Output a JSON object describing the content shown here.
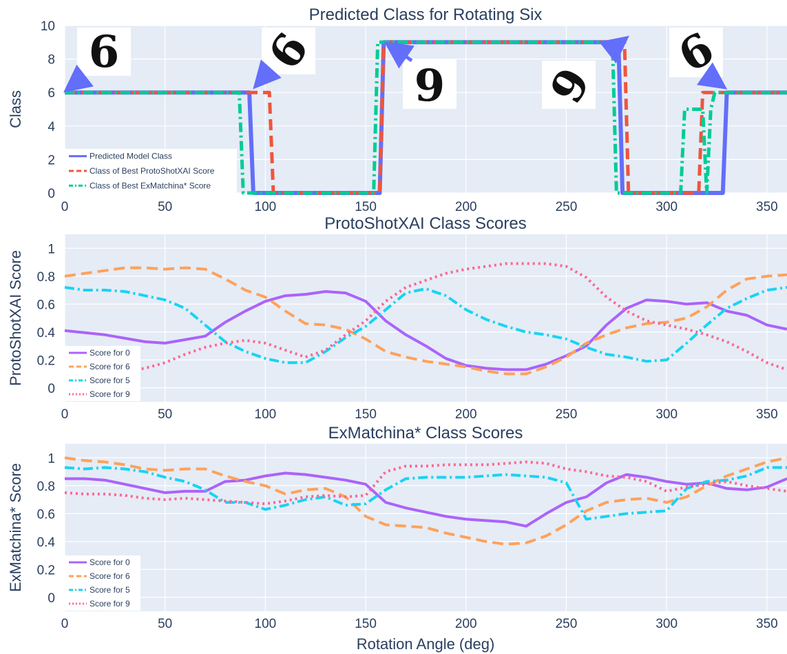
{
  "xlabel": "Rotation Angle (deg)",
  "chart_data": [
    {
      "type": "line",
      "title": "Predicted Class for Rotating Six",
      "ylabel": "Class",
      "xlim": [
        0,
        360
      ],
      "ylim": [
        0,
        10
      ],
      "xticks": [
        0,
        50,
        100,
        150,
        200,
        250,
        300,
        350
      ],
      "yticks": [
        0,
        2,
        4,
        6,
        8,
        10
      ],
      "grid": true,
      "legend": "bottom-left",
      "series": [
        {
          "name": "Predicted Model Class",
          "color": "#636efa",
          "dash": "solid",
          "x": [
            0,
            92,
            94,
            157,
            159,
            276,
            278,
            328,
            330,
            360
          ],
          "y": [
            6,
            6,
            0,
            0,
            9,
            9,
            0,
            0,
            6,
            6
          ]
        },
        {
          "name": "Class of Best ProtoShotXAI Score",
          "color": "#ef553b",
          "dash": "dash",
          "x": [
            0,
            102,
            104,
            157,
            159,
            279,
            281,
            316,
            318,
            360
          ],
          "y": [
            6,
            6,
            0,
            0,
            9,
            9,
            0,
            0,
            6,
            6
          ]
        },
        {
          "name": "Class of Best ExMatchina* Score",
          "color": "#00cc96",
          "dash": "dashdot",
          "x": [
            0,
            87,
            89,
            154,
            156,
            273,
            275,
            307,
            309,
            318,
            320,
            322,
            324,
            360
          ],
          "y": [
            6,
            6,
            0,
            0,
            9,
            9,
            0,
            0,
            5,
            5,
            0,
            5,
            6,
            6
          ]
        }
      ]
    },
    {
      "type": "line",
      "title": "ProtoShotXAI Class Scores",
      "ylabel": "ProtoShotXAI Score",
      "xlim": [
        0,
        360
      ],
      "ylim": [
        -0.1,
        1.1
      ],
      "xticks": [
        0,
        50,
        100,
        150,
        200,
        250,
        300,
        350
      ],
      "yticks": [
        0,
        0.2,
        0.4,
        0.6,
        0.8,
        1
      ],
      "grid": true,
      "legend": "bottom-left",
      "series": [
        {
          "name": "Score for 0",
          "color": "#ab63fa",
          "dash": "solid",
          "x": [
            0,
            20,
            40,
            50,
            70,
            80,
            90,
            100,
            110,
            120,
            130,
            140,
            150,
            160,
            170,
            180,
            190,
            200,
            210,
            220,
            230,
            240,
            250,
            260,
            270,
            280,
            290,
            300,
            310,
            320,
            330,
            340,
            350,
            360
          ],
          "y": [
            0.41,
            0.38,
            0.33,
            0.32,
            0.37,
            0.47,
            0.55,
            0.62,
            0.66,
            0.67,
            0.69,
            0.68,
            0.62,
            0.48,
            0.38,
            0.3,
            0.21,
            0.16,
            0.14,
            0.13,
            0.13,
            0.17,
            0.23,
            0.3,
            0.45,
            0.57,
            0.63,
            0.62,
            0.6,
            0.61,
            0.55,
            0.52,
            0.45,
            0.42
          ]
        },
        {
          "name": "Score for 6",
          "color": "#ffa15a",
          "dash": "dash",
          "x": [
            0,
            10,
            20,
            30,
            40,
            50,
            60,
            70,
            80,
            90,
            100,
            110,
            120,
            130,
            140,
            150,
            160,
            170,
            180,
            190,
            200,
            210,
            220,
            230,
            240,
            250,
            260,
            270,
            280,
            290,
            300,
            310,
            320,
            330,
            340,
            350,
            360
          ],
          "y": [
            0.8,
            0.82,
            0.84,
            0.86,
            0.86,
            0.85,
            0.86,
            0.85,
            0.78,
            0.7,
            0.65,
            0.55,
            0.46,
            0.45,
            0.42,
            0.35,
            0.26,
            0.22,
            0.19,
            0.17,
            0.15,
            0.12,
            0.1,
            0.1,
            0.15,
            0.22,
            0.32,
            0.38,
            0.43,
            0.46,
            0.47,
            0.5,
            0.58,
            0.7,
            0.78,
            0.8,
            0.81
          ]
        },
        {
          "name": "Score for 5",
          "color": "#19d3f3",
          "dash": "dashdot",
          "x": [
            0,
            10,
            20,
            30,
            40,
            50,
            60,
            70,
            80,
            90,
            100,
            110,
            120,
            130,
            140,
            150,
            160,
            170,
            180,
            190,
            200,
            210,
            220,
            230,
            240,
            250,
            260,
            270,
            280,
            290,
            300,
            310,
            320,
            330,
            340,
            350,
            360
          ],
          "y": [
            0.72,
            0.7,
            0.7,
            0.69,
            0.66,
            0.63,
            0.57,
            0.45,
            0.33,
            0.26,
            0.21,
            0.18,
            0.18,
            0.26,
            0.36,
            0.44,
            0.56,
            0.68,
            0.71,
            0.66,
            0.56,
            0.49,
            0.44,
            0.4,
            0.38,
            0.35,
            0.29,
            0.24,
            0.22,
            0.19,
            0.2,
            0.32,
            0.45,
            0.57,
            0.64,
            0.7,
            0.72
          ]
        },
        {
          "name": "Score for 9",
          "color": "#ff6692",
          "dash": "dot",
          "x": [
            0,
            10,
            20,
            30,
            40,
            50,
            60,
            70,
            80,
            90,
            100,
            110,
            120,
            130,
            140,
            150,
            160,
            170,
            180,
            190,
            200,
            210,
            220,
            230,
            240,
            250,
            260,
            270,
            280,
            290,
            300,
            310,
            320,
            330,
            340,
            350,
            360
          ],
          "y": [
            0.13,
            0.12,
            0.12,
            0.12,
            0.14,
            0.18,
            0.24,
            0.29,
            0.32,
            0.34,
            0.32,
            0.27,
            0.22,
            0.27,
            0.38,
            0.48,
            0.62,
            0.72,
            0.77,
            0.82,
            0.85,
            0.87,
            0.89,
            0.89,
            0.89,
            0.87,
            0.79,
            0.65,
            0.55,
            0.48,
            0.45,
            0.42,
            0.38,
            0.33,
            0.26,
            0.18,
            0.13
          ]
        }
      ]
    },
    {
      "type": "line",
      "title": "ExMatchina* Class Scores",
      "ylabel": "ExMatchina* Score",
      "xlim": [
        0,
        360
      ],
      "ylim": [
        -0.1,
        1.1
      ],
      "xticks": [
        0,
        50,
        100,
        150,
        200,
        250,
        300,
        350
      ],
      "yticks": [
        0,
        0.2,
        0.4,
        0.6,
        0.8,
        1
      ],
      "grid": true,
      "legend": "bottom-left",
      "series": [
        {
          "name": "Score for 0",
          "color": "#ab63fa",
          "dash": "solid",
          "x": [
            0,
            10,
            20,
            30,
            40,
            50,
            60,
            70,
            80,
            90,
            100,
            110,
            120,
            130,
            140,
            150,
            160,
            170,
            180,
            190,
            200,
            210,
            220,
            230,
            240,
            250,
            260,
            270,
            280,
            290,
            300,
            310,
            320,
            330,
            340,
            350,
            360
          ],
          "y": [
            0.85,
            0.85,
            0.84,
            0.81,
            0.78,
            0.75,
            0.76,
            0.76,
            0.83,
            0.84,
            0.87,
            0.89,
            0.88,
            0.86,
            0.84,
            0.81,
            0.68,
            0.64,
            0.61,
            0.58,
            0.56,
            0.55,
            0.54,
            0.51,
            0.6,
            0.68,
            0.72,
            0.82,
            0.88,
            0.86,
            0.83,
            0.81,
            0.82,
            0.78,
            0.77,
            0.79,
            0.85
          ]
        },
        {
          "name": "Score for 6",
          "color": "#ffa15a",
          "dash": "dash",
          "x": [
            0,
            10,
            20,
            30,
            40,
            50,
            60,
            70,
            80,
            90,
            100,
            110,
            120,
            130,
            140,
            150,
            160,
            170,
            180,
            190,
            200,
            210,
            220,
            230,
            240,
            250,
            260,
            270,
            280,
            290,
            300,
            310,
            320,
            330,
            340,
            350,
            360
          ],
          "y": [
            1.0,
            0.98,
            0.97,
            0.95,
            0.92,
            0.91,
            0.92,
            0.92,
            0.87,
            0.83,
            0.8,
            0.74,
            0.77,
            0.78,
            0.72,
            0.58,
            0.52,
            0.51,
            0.5,
            0.46,
            0.43,
            0.4,
            0.38,
            0.39,
            0.44,
            0.52,
            0.62,
            0.68,
            0.7,
            0.71,
            0.68,
            0.72,
            0.8,
            0.87,
            0.92,
            0.97,
            1.0
          ]
        },
        {
          "name": "Score for 5",
          "color": "#19d3f3",
          "dash": "dashdot",
          "x": [
            0,
            10,
            20,
            30,
            40,
            50,
            60,
            70,
            80,
            90,
            100,
            110,
            120,
            130,
            140,
            150,
            160,
            170,
            180,
            190,
            200,
            210,
            220,
            230,
            240,
            250,
            260,
            270,
            280,
            290,
            300,
            310,
            320,
            330,
            340,
            350,
            360
          ],
          "y": [
            0.93,
            0.92,
            0.93,
            0.92,
            0.9,
            0.86,
            0.83,
            0.77,
            0.68,
            0.68,
            0.63,
            0.66,
            0.7,
            0.72,
            0.66,
            0.67,
            0.77,
            0.85,
            0.86,
            0.86,
            0.86,
            0.87,
            0.88,
            0.87,
            0.86,
            0.82,
            0.56,
            0.58,
            0.6,
            0.61,
            0.62,
            0.78,
            0.83,
            0.84,
            0.87,
            0.93,
            0.93
          ]
        },
        {
          "name": "Score for 9",
          "color": "#ff6692",
          "dash": "dot",
          "x": [
            0,
            10,
            20,
            30,
            40,
            50,
            60,
            70,
            80,
            90,
            100,
            110,
            120,
            130,
            140,
            150,
            160,
            170,
            180,
            190,
            200,
            210,
            220,
            230,
            240,
            250,
            260,
            270,
            280,
            290,
            300,
            310,
            320,
            330,
            340,
            350,
            360
          ],
          "y": [
            0.75,
            0.74,
            0.74,
            0.73,
            0.71,
            0.7,
            0.71,
            0.7,
            0.69,
            0.68,
            0.67,
            0.69,
            0.72,
            0.73,
            0.72,
            0.73,
            0.9,
            0.94,
            0.94,
            0.95,
            0.95,
            0.95,
            0.96,
            0.97,
            0.96,
            0.92,
            0.9,
            0.87,
            0.86,
            0.83,
            0.76,
            0.79,
            0.81,
            0.83,
            0.8,
            0.78,
            0.76
          ]
        }
      ]
    }
  ]
}
